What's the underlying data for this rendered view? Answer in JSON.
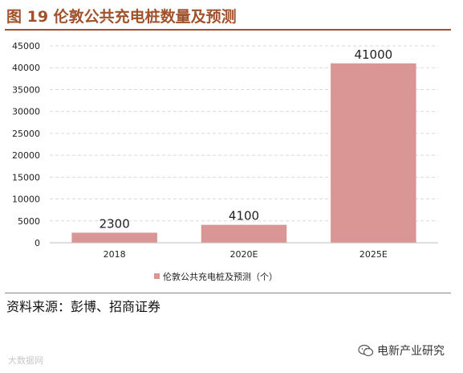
{
  "title": "图 19 伦敦公共充电桩数量及预测",
  "source": "资料来源：彭博、招商证券",
  "watermark_left": "大数据网",
  "watermark_right": "电新产业研究",
  "colors": {
    "bar": "#d99694",
    "title": "#a0522d",
    "grid": "#d9d9d9"
  },
  "chart_data": {
    "type": "bar",
    "categories": [
      "2018",
      "2020E",
      "2025E"
    ],
    "values": [
      2300,
      4100,
      41000
    ],
    "data_labels": [
      "2300",
      "4100",
      "41000"
    ],
    "y_ticks": [
      "0",
      "5000",
      "10000",
      "15000",
      "20000",
      "25000",
      "30000",
      "35000",
      "40000",
      "45000"
    ],
    "ylim": [
      0,
      45000
    ],
    "legend": "伦敦公共充电桩及预测（个）",
    "legend_position": "bottom",
    "grid": true
  }
}
